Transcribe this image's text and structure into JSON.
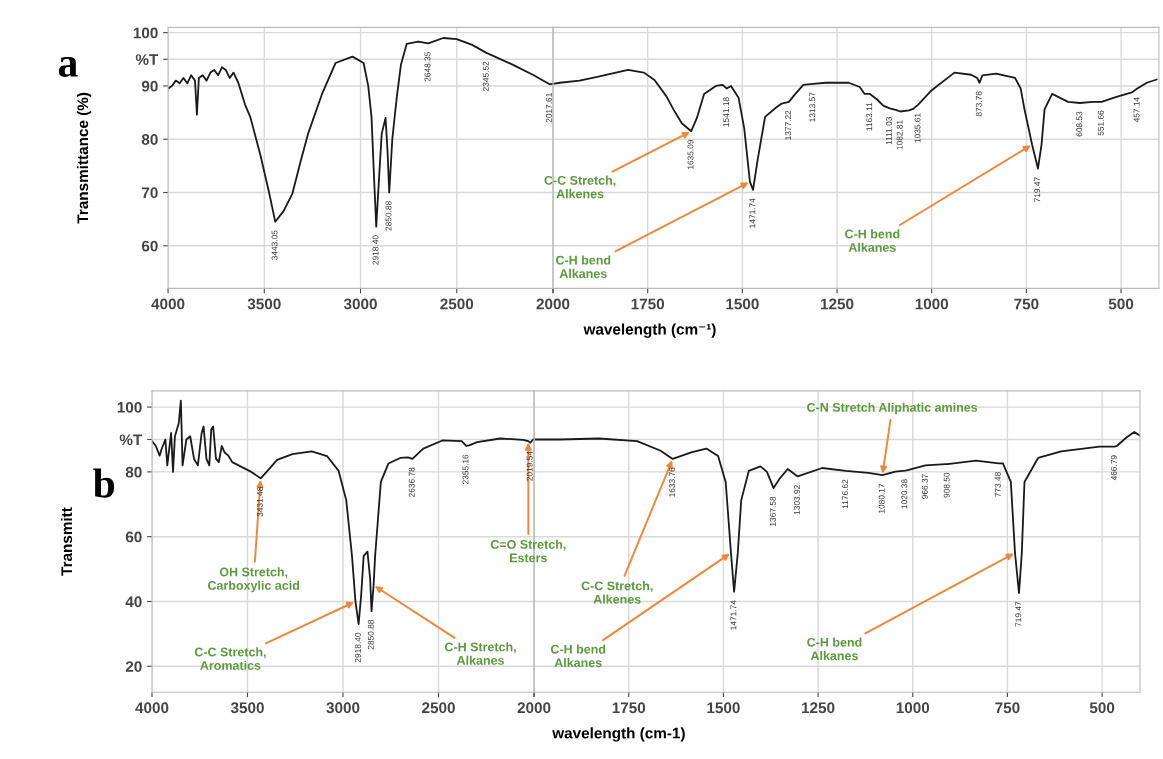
{
  "chart_data": [
    {
      "type": "line",
      "ylabel": "Transmittance (%)",
      "grid": true,
      "xlim": [
        4000,
        2000
      ],
      "xticks": [
        4000,
        3500,
        3000,
        2500,
        {
          "value": 2000,
          "label": null
        }
      ],
      "ylim": [
        52,
        101
      ],
      "yticks": [
        60,
        70,
        80,
        90,
        {
          "value": 95,
          "label": "%T"
        },
        100
      ],
      "series": [
        {
          "color": "#1a1a1a",
          "x": [
            4000,
            3980,
            3960,
            3940,
            3920,
            3900,
            3880,
            3860,
            3850,
            3840,
            3820,
            3800,
            3780,
            3760,
            3740,
            3720,
            3700,
            3680,
            3660,
            3635,
            3600,
            3573,
            3520,
            3474,
            3443.05,
            3400,
            3354,
            3310,
            3271,
            3200,
            3130,
            3042,
            2984,
            2960,
            2943,
            2930,
            2918.4,
            2905,
            2890,
            2870,
            2860,
            2850.88,
            2835,
            2812,
            2790,
            2760,
            2700,
            2648.35,
            2570,
            2500,
            2420,
            2345.52,
            2210,
            2100,
            2017.61,
            2000
          ],
          "values": [
            89.5,
            90,
            91,
            90.5,
            91.5,
            90.5,
            92,
            91,
            84.6,
            91.5,
            92,
            91,
            92.5,
            93,
            92,
            93.5,
            93,
            91.5,
            92.5,
            90.6,
            86.5,
            84.2,
            77,
            69.8,
            64.5,
            66.5,
            69.8,
            76,
            81.2,
            88.5,
            94.3,
            95.5,
            94.3,
            90,
            84.2,
            73,
            63.6,
            72,
            81,
            84,
            78,
            70,
            80,
            87.8,
            94,
            97.9,
            98.3,
            98,
            99,
            98.8,
            97.7,
            96.2,
            94,
            92,
            90.3,
            90.4
          ]
        }
      ],
      "annotations": [
        "a",
        {
          "text": "3443.05",
          "x": 3443.05,
          "y": 64.5
        },
        {
          "text": "2918.40",
          "x": 2918.4,
          "y": 63.6
        },
        {
          "text": "2850.88",
          "x": 2850.88,
          "y": 70
        },
        {
          "text": "2648.35",
          "x": 2648.35,
          "y": 98
        },
        {
          "text": "2345.52",
          "x": 2345.52,
          "y": 96.2
        },
        {
          "text": "2017.61",
          "x": 2017.61,
          "y": 90.3
        }
      ]
    },
    {
      "type": "line",
      "xlabel": "wavelength (cm⁻¹)",
      "grid": true,
      "tick_labels": "x",
      "xlim": [
        2000,
        400
      ],
      "xticks": [
        2000,
        1750,
        1500,
        1250,
        1000,
        750,
        500
      ],
      "ylim": [
        52,
        101
      ],
      "yticks": [
        60,
        70,
        80,
        90,
        95,
        100
      ],
      "series": [
        {
          "color": "#1a1a1a",
          "x": [
            2000,
            1982,
            1930,
            1883,
            1802,
            1760,
            1732,
            1700,
            1682,
            1660,
            1635.09,
            1620,
            1601,
            1570,
            1552,
            1541.18,
            1530,
            1510,
            1495,
            1480,
            1471.74,
            1460,
            1440,
            1410,
            1396,
            1377.22,
            1360,
            1339,
            1313.57,
            1279,
            1219,
            1190,
            1177,
            1163.11,
            1145,
            1128,
            1111.03,
            1095,
            1082.81,
            1060,
            1049,
            1035.61,
            1000,
            940,
            896,
            880,
            873.78,
            866,
            830,
            780,
            765,
            755,
            735,
            719.47,
            710,
            702,
            682,
            640,
            608.53,
            575,
            551.66,
            510,
            471,
            457.14,
            432,
            406
          ],
          "values": [
            90.4,
            90.6,
            91,
            91.7,
            93,
            92.5,
            91.1,
            88,
            85.6,
            83,
            81.5,
            84,
            88.5,
            90,
            90.2,
            89.5,
            90,
            87.8,
            82,
            72,
            70.5,
            76,
            84.2,
            86,
            86.7,
            87,
            88.5,
            90.2,
            90.4,
            90.6,
            90.6,
            89.8,
            88.5,
            88.5,
            87.5,
            86.3,
            85.8,
            85.5,
            85.2,
            85.4,
            85.7,
            86.5,
            89.2,
            92.5,
            92.1,
            91.5,
            90.6,
            92,
            92.3,
            91.5,
            89.5,
            85.6,
            79,
            74.5,
            79,
            85.6,
            88.5,
            87,
            86.8,
            87,
            87,
            88,
            88.8,
            89.5,
            90.6,
            91.2
          ]
        }
      ],
      "annotations": [
        {
          "text": "C-C Stretch,\nAlkenes",
          "x": 1635.09,
          "y": 81.5
        },
        {
          "text": "C-H bend\nAlkanes",
          "x": 1480,
          "y": 72
        },
        {
          "text": "C-H bend\nAlkanes",
          "x": 735,
          "y": 79
        },
        {
          "text": "1635.09",
          "x": 1635.09,
          "y": 81.5
        },
        {
          "text": "1541.18",
          "x": 1541.18,
          "y": 89.5
        },
        {
          "text": "1471.74",
          "x": 1471.74,
          "y": 70.5
        },
        {
          "text": "1377.22",
          "x": 1377.22,
          "y": 87
        },
        {
          "text": "1313.57",
          "x": 1313.57,
          "y": 90.4
        },
        {
          "text": "1163.11",
          "x": 1163.11,
          "y": 88.5
        },
        {
          "text": "1111.03",
          "x": 1111.03,
          "y": 85.8
        },
        {
          "text": "1082.81",
          "x": 1082.81,
          "y": 85.2
        },
        {
          "text": "1035.61",
          "x": 1035.61,
          "y": 86.5
        },
        {
          "text": "873.78",
          "x": 873.78,
          "y": 90.6
        },
        {
          "text": "719.47",
          "x": 719.47,
          "y": 74.5
        },
        {
          "text": "608.53",
          "x": 608.53,
          "y": 86.8
        },
        {
          "text": "551.66",
          "x": 551.66,
          "y": 87
        },
        {
          "text": "457.14",
          "x": 457.14,
          "y": 89.5
        }
      ]
    },
    {
      "type": "line",
      "ylabel": "Transmitt",
      "grid": true,
      "xlim": [
        4000,
        2000
      ],
      "xticks": [
        4000,
        3500,
        3000,
        2500,
        {
          "value": 2000,
          "label": null
        }
      ],
      "ylim": [
        12,
        105
      ],
      "yticks": [
        20,
        40,
        60,
        80,
        {
          "value": 90,
          "label": "%T"
        },
        100
      ],
      "series": [
        {
          "color": "#1a1a1a",
          "x": [
            4000,
            3980,
            3960,
            3950,
            3930,
            3920,
            3900,
            3890,
            3880,
            3860,
            3849,
            3840,
            3820,
            3800,
            3780,
            3760,
            3740,
            3730,
            3715,
            3700,
            3690,
            3680,
            3665,
            3650,
            3635,
            3620,
            3600,
            3580,
            3547,
            3480,
            3431.48,
            3400,
            3345,
            3265,
            3164,
            3084,
            3023,
            2983,
            2953,
            2935,
            2918.4,
            2905,
            2892,
            2872,
            2858,
            2850.88,
            2840,
            2832,
            2802,
            2762,
            2701,
            2660,
            2636.78,
            2580,
            2480,
            2379,
            2355.16,
            2340,
            2298,
            2177,
            2057,
            2030,
            2019.54,
            2005,
            2000
          ],
          "values": [
            89.5,
            88,
            85,
            87,
            90,
            82,
            92,
            80,
            91,
            95,
            102,
            82,
            90,
            91,
            84,
            82,
            92,
            94,
            84,
            82,
            93,
            94,
            84,
            83,
            88,
            86,
            85,
            83,
            82,
            80,
            78,
            80,
            83.7,
            85.5,
            86.3,
            84.9,
            80.3,
            71.2,
            54,
            40,
            33,
            42,
            54,
            55.4,
            47,
            37,
            45,
            54,
            76.9,
            82.6,
            84.3,
            84.5,
            84,
            87.2,
            89.7,
            89.5,
            88,
            88.2,
            89.2,
            90.3,
            89.9,
            89.5,
            89,
            90,
            90
          ]
        }
      ],
      "annotations": [
        "b",
        {
          "text": "OH Stretch,\nCarboxylic acid",
          "x": 3431.48,
          "y": 78
        },
        {
          "text": "C-C Stretch,\nAromatics",
          "x": 2935,
          "y": 40
        },
        {
          "text": "C-H Stretch,\nAlkanes",
          "x": 2840,
          "y": 45
        },
        {
          "text": "C=O Stretch,\nEsters",
          "x": 2030,
          "y": 89.5
        },
        {
          "text": "3431.48",
          "x": 3431.48,
          "y": 78
        },
        {
          "text": "2918.40",
          "x": 2918.4,
          "y": 33
        },
        {
          "text": "2850.88",
          "x": 2850.88,
          "y": 37
        },
        {
          "text": "2636.78",
          "x": 2636.78,
          "y": 84
        },
        {
          "text": "2355.16",
          "x": 2355.16,
          "y": 88
        },
        {
          "text": "2019.54",
          "x": 2019.54,
          "y": 89
        }
      ]
    },
    {
      "type": "line",
      "xlabel": "wavelength (cm-1)",
      "grid": true,
      "tick_labels": "x",
      "xlim": [
        2000,
        400
      ],
      "xticks": [
        2000,
        1750,
        1500,
        1250,
        1000,
        750,
        500
      ],
      "ylim": [
        12,
        105
      ],
      "yticks": [
        20,
        40,
        60,
        80,
        90,
        100
      ],
      "series": [
        {
          "color": "#1a1a1a",
          "x": [
            2000,
            1931,
            1829,
            1728,
            1667,
            1633.76,
            1585,
            1545,
            1514,
            1494,
            1480,
            1471.74,
            1462,
            1453,
            1433,
            1402,
            1385,
            1367.58,
            1351,
            1330,
            1303.92,
            1239,
            1176.62,
            1117,
            1080.17,
            1046,
            1020.38,
            1016,
            966.37,
            914,
            908.5,
            833,
            773.48,
            762,
            741,
            730,
            719.47,
            712,
            705,
            669,
            608,
            507,
            466.79,
            461,
            436,
            415,
            400
          ],
          "values": [
            90,
            90,
            90.3,
            89.5,
            86.6,
            84,
            86,
            87.2,
            84.9,
            76.9,
            55,
            43,
            55,
            71.2,
            80.3,
            81.7,
            80,
            75,
            78,
            80.9,
            78.6,
            81.2,
            80.3,
            79.7,
            79,
            80.1,
            80.4,
            80.5,
            82,
            82.4,
            82.4,
            83.5,
            82.6,
            82.6,
            76.9,
            55,
            42.6,
            55,
            76.9,
            84.3,
            86.3,
            87.8,
            87.8,
            88,
            90.6,
            92.3,
            91.2
          ]
        }
      ],
      "annotations": [
        {
          "text": "C-C Stretch,\nAlkenes",
          "x": 1633.76,
          "y": 84
        },
        {
          "text": "C-H bend\nAlkanes",
          "x": 1480,
          "y": 55
        },
        {
          "text": "C-H bend\nAlkanes",
          "x": 730,
          "y": 55
        },
        {
          "text": "C-N Stretch Aliphatic amines",
          "x": 1080.17,
          "y": 79
        },
        {
          "text": "1633.76",
          "x": 1633.76,
          "y": 84
        },
        {
          "text": "1471.74",
          "x": 1471.74,
          "y": 43
        },
        {
          "text": "1367.58",
          "x": 1367.58,
          "y": 75
        },
        {
          "text": "1303.92",
          "x": 1303.92,
          "y": 78.6
        },
        {
          "text": "1176.62",
          "x": 1176.62,
          "y": 80.3
        },
        {
          "text": "1080.17",
          "x": 1080.17,
          "y": 79
        },
        {
          "text": "1020.38",
          "x": 1020.38,
          "y": 80.4
        },
        {
          "text": "966.37",
          "x": 966.37,
          "y": 82
        },
        {
          "text": "908.50",
          "x": 908.5,
          "y": 82.4
        },
        {
          "text": "773.48",
          "x": 773.48,
          "y": 82.6
        },
        {
          "text": "719.47",
          "x": 719.47,
          "y": 42.6
        },
        {
          "text": "466.79",
          "x": 466.79,
          "y": 87.8
        }
      ]
    }
  ]
}
